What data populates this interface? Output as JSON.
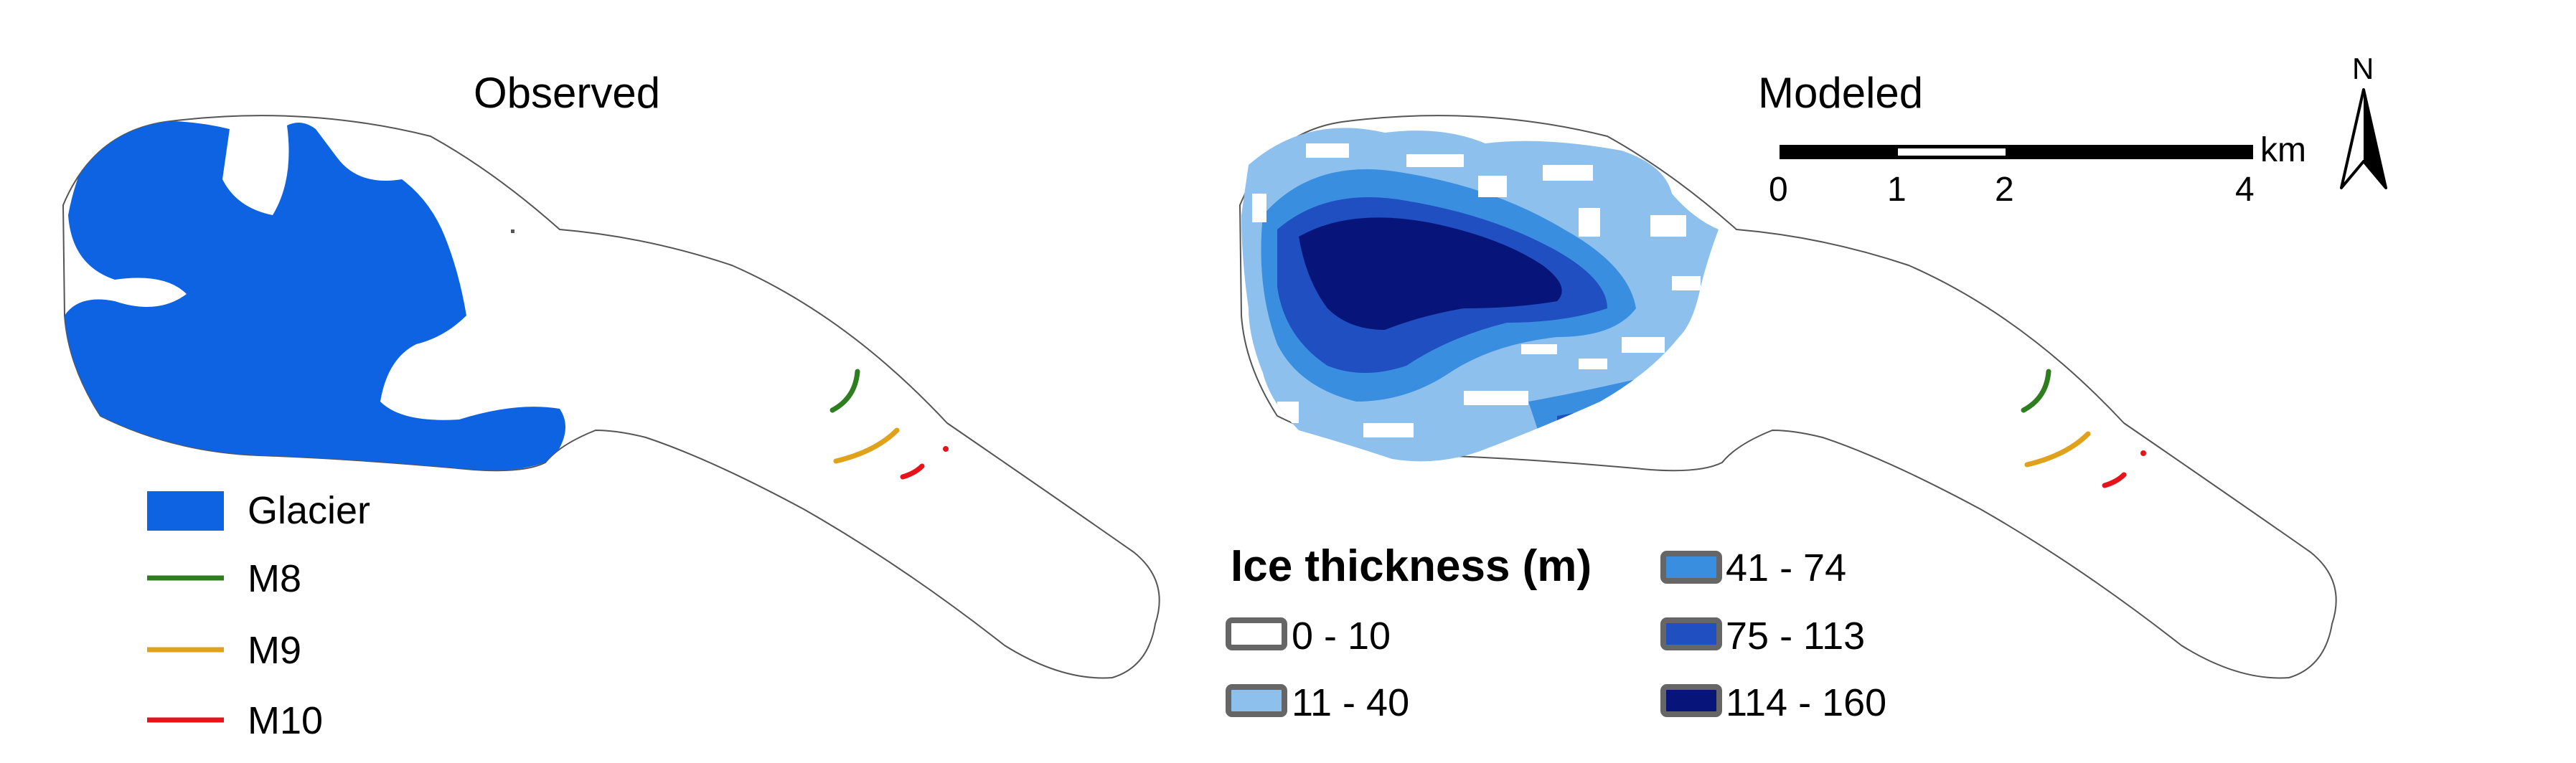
{
  "panels": {
    "observed": {
      "title": "Observed"
    },
    "modeled": {
      "title": "Modeled"
    }
  },
  "legend_observed": {
    "glacier": {
      "label": "Glacier",
      "color": "#0e63e3"
    },
    "moraines": [
      {
        "label": "M8",
        "color": "#2e7d1e"
      },
      {
        "label": "M9",
        "color": "#e0a21b"
      },
      {
        "label": "M10",
        "color": "#e8121b"
      }
    ]
  },
  "legend_thickness": {
    "title": "Ice thickness (m)",
    "classes": [
      {
        "label": "0 - 10",
        "color": "#ffffff"
      },
      {
        "label": "11 - 40",
        "color": "#8ec0ee"
      },
      {
        "label": "41 - 74",
        "color": "#3a8ee0"
      },
      {
        "label": "75 - 113",
        "color": "#1f4fc0"
      },
      {
        "label": "114 - 160",
        "color": "#07157a"
      }
    ]
  },
  "scale_bar": {
    "unit": "km",
    "ticks": [
      "0",
      "1",
      "2",
      "4"
    ]
  },
  "north_arrow": {
    "label": "N",
    "icon": "north-arrow-icon"
  }
}
